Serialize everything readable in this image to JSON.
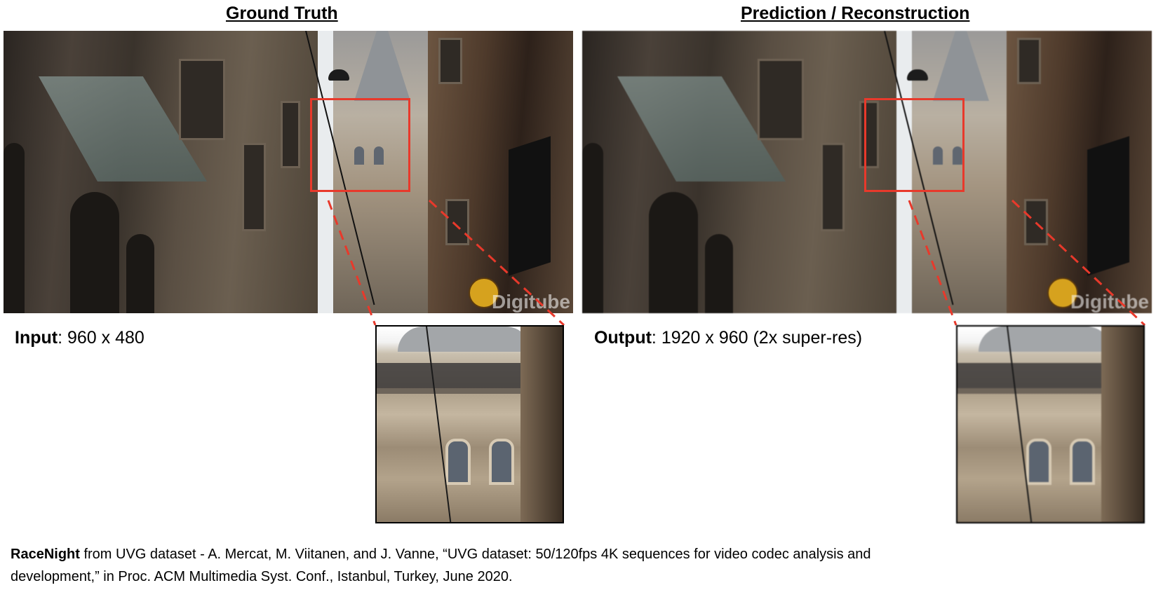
{
  "titles": {
    "left": "Ground Truth",
    "right": "Prediction / Reconstruction"
  },
  "labels": {
    "input_key": "Input",
    "input_value": ": 960 x 480",
    "output_key": "Output",
    "output_value": ": 1920 x 960 (2x super-res)"
  },
  "watermark": "Digitube",
  "caption": {
    "bold": "RaceNight",
    "line1": " from UVG dataset - A. Mercat, M. Viitanen, and J. Vanne, “UVG dataset: 50/120fps 4K sequences for video codec analysis and",
    "line2": "development,” in Proc. ACM Multimedia Syst. Conf., Istanbul, Turkey, June 2020."
  },
  "colors": {
    "roi_box": "#e8392b",
    "leader_line": "#e8392b"
  }
}
